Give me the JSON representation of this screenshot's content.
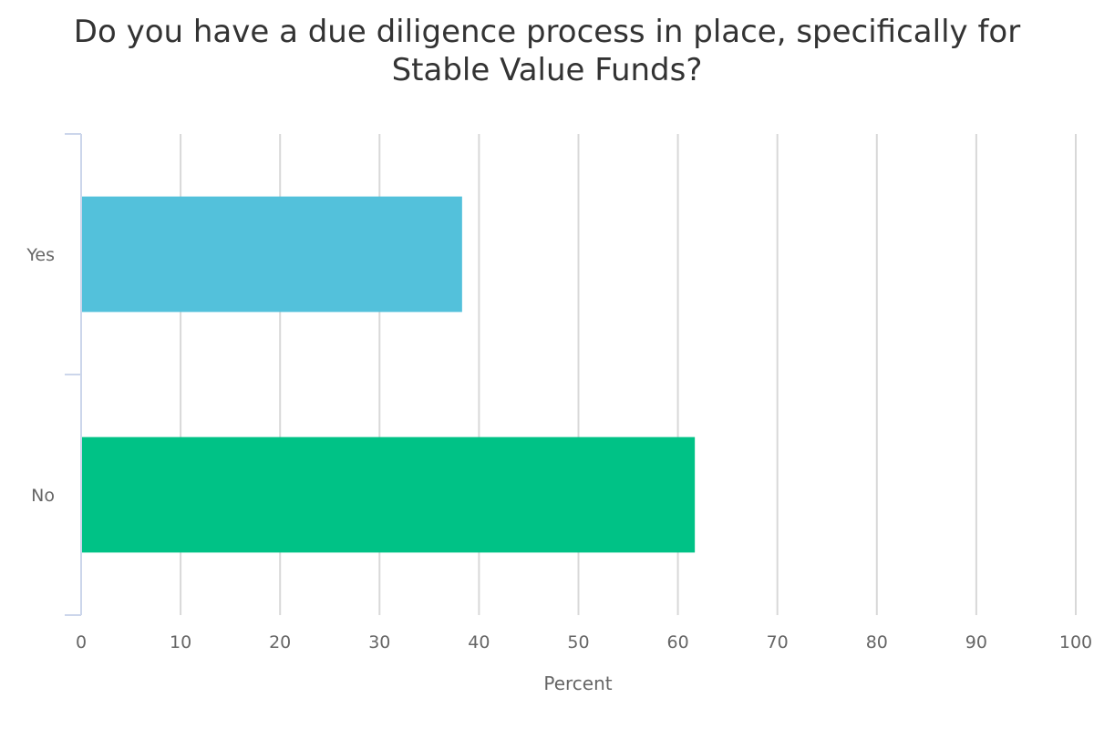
{
  "chart_data": {
    "type": "bar",
    "orientation": "horizontal",
    "title": "Do you have a due diligence process in place, specifically for Stable Value Funds?",
    "categories": [
      "Yes",
      "No"
    ],
    "values": [
      38.3,
      61.7
    ],
    "colors": [
      "#53c1db",
      "#00c286"
    ],
    "xlabel": "Percent",
    "ylabel": "",
    "xlim": [
      0,
      100
    ],
    "xticks": [
      0,
      10,
      20,
      30,
      40,
      50,
      60,
      70,
      80,
      90,
      100
    ],
    "grid": true,
    "legend": false
  }
}
